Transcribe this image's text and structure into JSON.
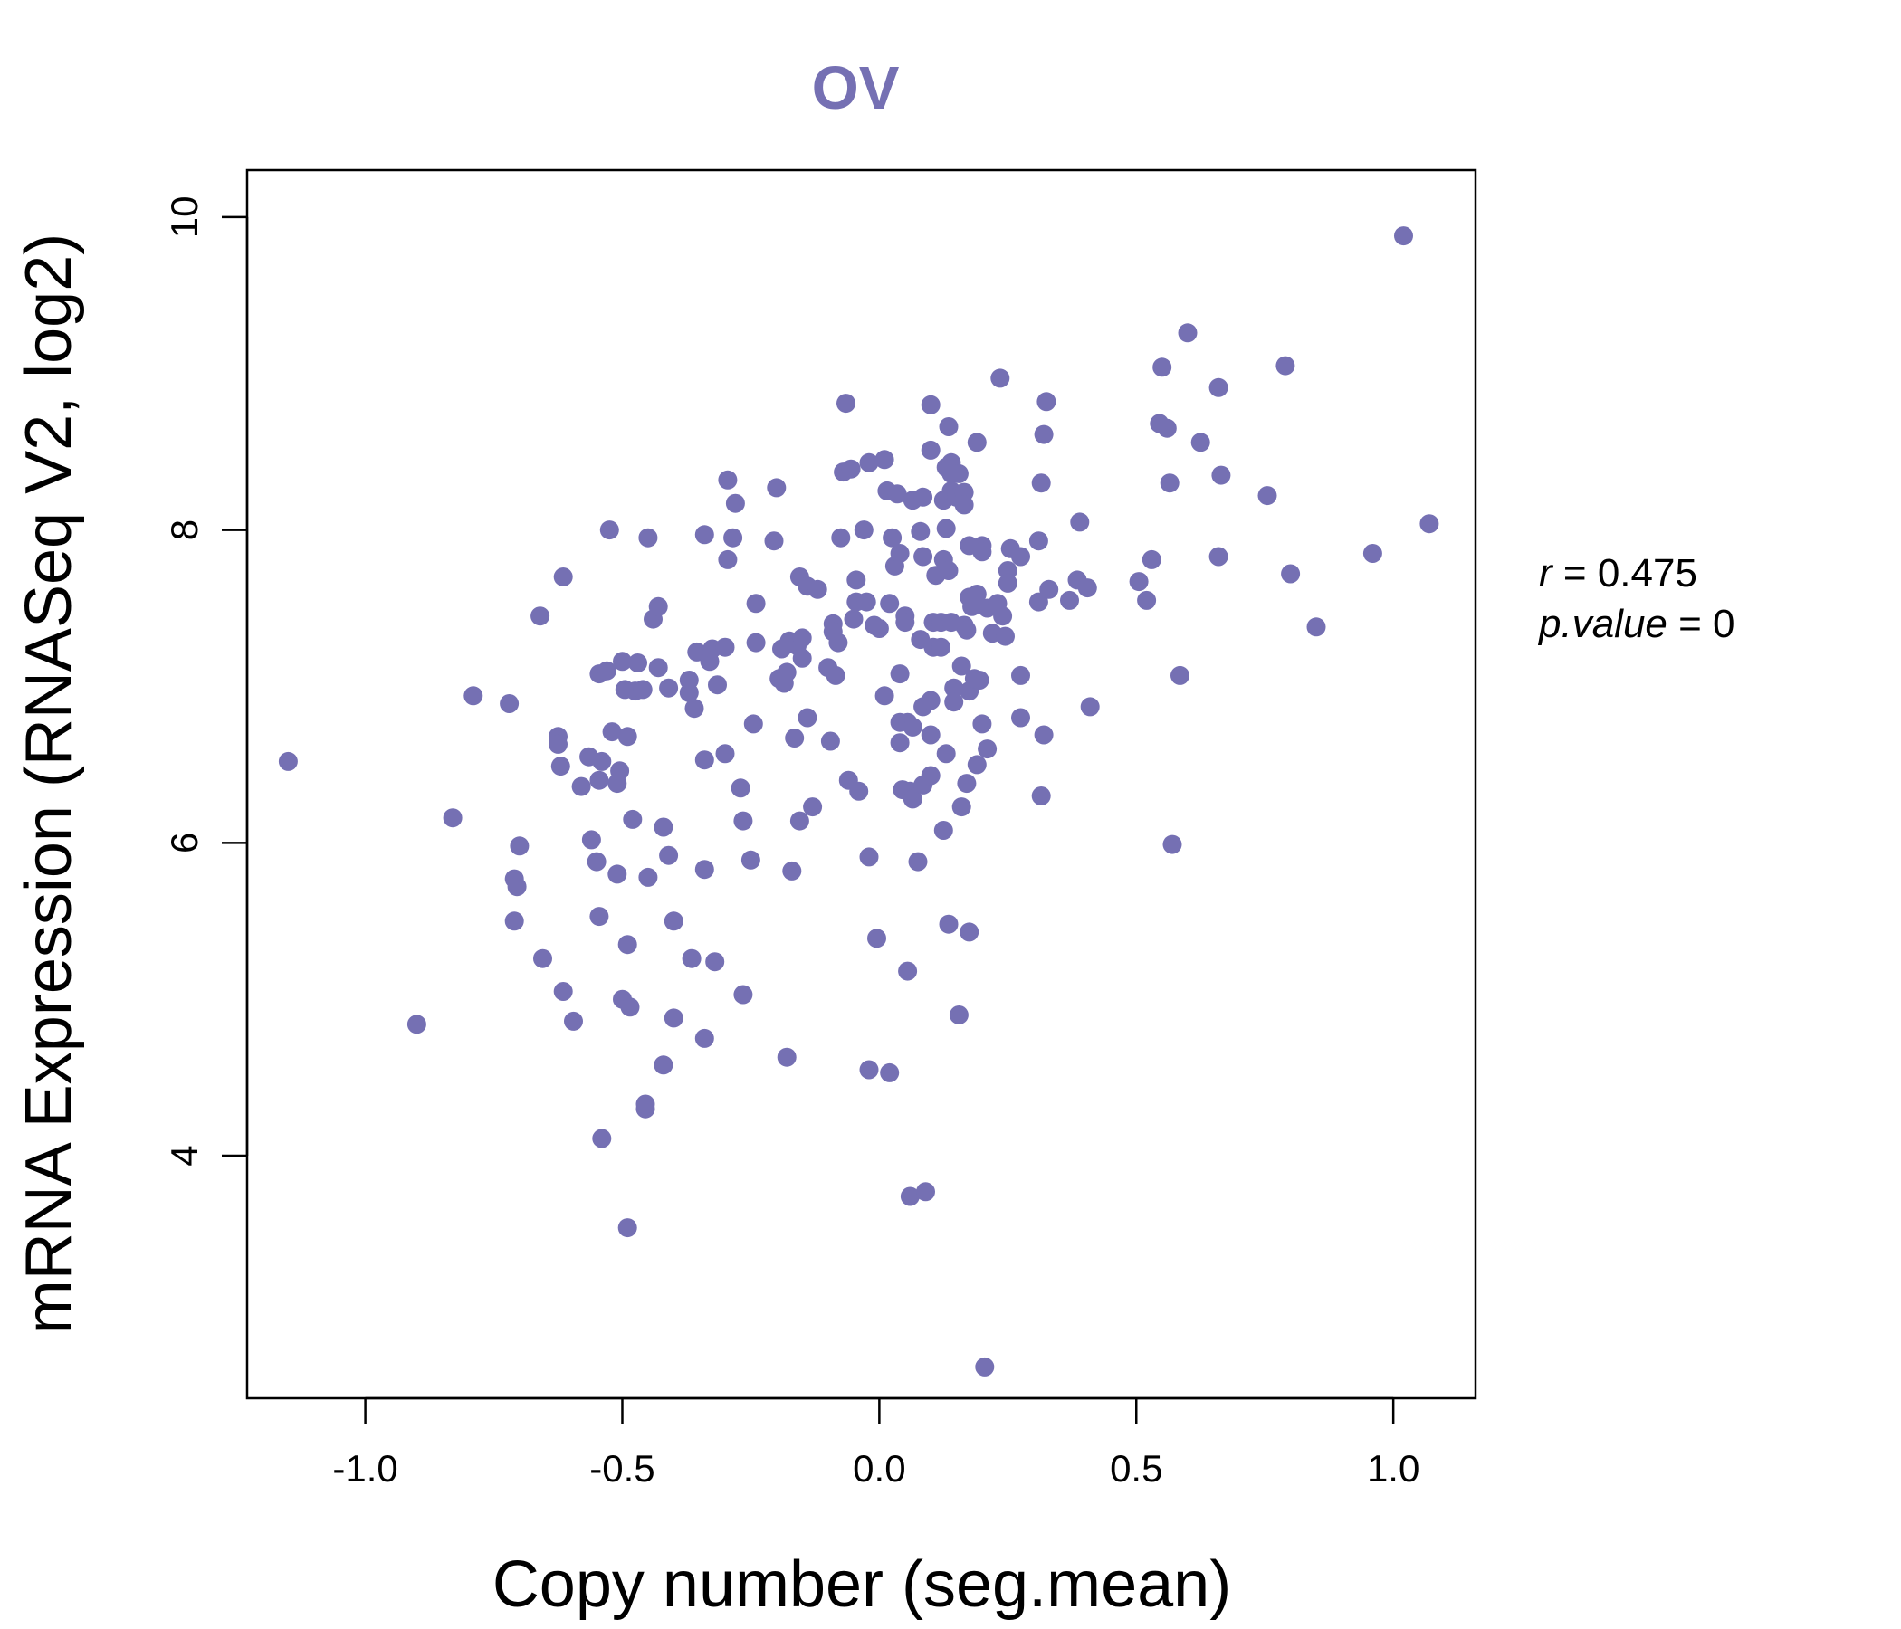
{
  "colors": {
    "accent": "#7570b3",
    "axis": "#000000",
    "background": "#ffffff"
  },
  "chart_data": {
    "type": "scatter",
    "title": "OV",
    "xlabel": "Copy number (seg.mean)",
    "ylabel": "mRNA Expression (RNASeq V2, log2)",
    "xlim": [
      -1.23,
      1.16
    ],
    "ylim": [
      2.45,
      10.3
    ],
    "x_ticks": [
      -1.0,
      -0.5,
      0.0,
      0.5,
      1.0
    ],
    "x_tick_labels": [
      "-1.0",
      "-0.5",
      "0.0",
      "0.5",
      "1.0"
    ],
    "y_ticks": [
      4,
      6,
      8,
      10
    ],
    "y_tick_labels": [
      "4",
      "6",
      "8",
      "10"
    ],
    "stats": {
      "r_label": "r",
      "r_value": "0.475",
      "p_label": "p.value",
      "p_value": "0"
    },
    "points": [
      [
        -1.15,
        6.52
      ],
      [
        -0.9,
        4.84
      ],
      [
        -0.83,
        6.16
      ],
      [
        -0.79,
        6.94
      ],
      [
        -0.72,
        6.89
      ],
      [
        -0.71,
        5.77
      ],
      [
        -0.705,
        5.72
      ],
      [
        -0.71,
        5.5
      ],
      [
        -0.7,
        5.98
      ],
      [
        -0.66,
        7.45
      ],
      [
        -0.655,
        5.26
      ],
      [
        -0.625,
        6.68
      ],
      [
        -0.625,
        6.63
      ],
      [
        -0.62,
        6.49
      ],
      [
        -0.615,
        7.7
      ],
      [
        -0.615,
        5.05
      ],
      [
        -0.595,
        4.86
      ],
      [
        -0.58,
        6.36
      ],
      [
        -0.565,
        6.55
      ],
      [
        -0.56,
        6.02
      ],
      [
        -0.55,
        5.88
      ],
      [
        -0.545,
        6.4
      ],
      [
        -0.545,
        7.08
      ],
      [
        -0.545,
        5.53
      ],
      [
        -0.54,
        6.52
      ],
      [
        -0.54,
        4.11
      ],
      [
        -0.53,
        7.1
      ],
      [
        -0.525,
        8.0
      ],
      [
        -0.52,
        6.71
      ],
      [
        -0.51,
        6.38
      ],
      [
        -0.51,
        5.8
      ],
      [
        -0.505,
        6.46
      ],
      [
        -0.5,
        7.16
      ],
      [
        -0.5,
        5.0
      ],
      [
        -0.495,
        6.98
      ],
      [
        -0.49,
        6.68
      ],
      [
        -0.49,
        5.35
      ],
      [
        -0.49,
        3.54
      ],
      [
        -0.485,
        4.95
      ],
      [
        -0.48,
        6.15
      ],
      [
        -0.475,
        6.97
      ],
      [
        -0.47,
        7.15
      ],
      [
        -0.46,
        6.98
      ],
      [
        -0.455,
        4.3
      ],
      [
        -0.455,
        4.33
      ],
      [
        -0.45,
        7.95
      ],
      [
        -0.45,
        5.78
      ],
      [
        -0.44,
        7.43
      ],
      [
        -0.43,
        7.51
      ],
      [
        -0.43,
        7.12
      ],
      [
        -0.42,
        6.1
      ],
      [
        -0.42,
        4.58
      ],
      [
        -0.41,
        5.92
      ],
      [
        -0.41,
        6.99
      ],
      [
        -0.4,
        5.5
      ],
      [
        -0.4,
        4.88
      ],
      [
        -0.37,
        6.96
      ],
      [
        -0.37,
        7.04
      ],
      [
        -0.365,
        5.26
      ],
      [
        -0.36,
        6.86
      ],
      [
        -0.355,
        7.22
      ],
      [
        -0.34,
        7.97
      ],
      [
        -0.34,
        6.53
      ],
      [
        -0.34,
        5.83
      ],
      [
        -0.34,
        4.75
      ],
      [
        -0.33,
        7.16
      ],
      [
        -0.325,
        7.24
      ],
      [
        -0.32,
        5.24
      ],
      [
        -0.315,
        7.01
      ],
      [
        -0.3,
        6.57
      ],
      [
        -0.3,
        7.25
      ],
      [
        -0.295,
        8.32
      ],
      [
        -0.295,
        7.81
      ],
      [
        -0.285,
        7.95
      ],
      [
        -0.28,
        8.17
      ],
      [
        -0.27,
        6.35
      ],
      [
        -0.265,
        6.14
      ],
      [
        -0.265,
        5.03
      ],
      [
        -0.25,
        5.89
      ],
      [
        -0.245,
        6.76
      ],
      [
        -0.24,
        7.53
      ],
      [
        -0.24,
        7.28
      ],
      [
        -0.205,
        7.93
      ],
      [
        -0.2,
        8.27
      ],
      [
        -0.195,
        7.05
      ],
      [
        -0.19,
        7.24
      ],
      [
        -0.185,
        7.02
      ],
      [
        -0.18,
        7.09
      ],
      [
        -0.18,
        4.63
      ],
      [
        -0.175,
        7.29
      ],
      [
        -0.17,
        5.82
      ],
      [
        -0.165,
        6.67
      ],
      [
        -0.16,
        7.26
      ],
      [
        -0.155,
        7.7
      ],
      [
        -0.155,
        6.14
      ],
      [
        -0.15,
        7.31
      ],
      [
        -0.15,
        7.18
      ],
      [
        -0.14,
        6.8
      ],
      [
        -0.14,
        7.64
      ],
      [
        -0.13,
        6.23
      ],
      [
        -0.12,
        7.62
      ],
      [
        -0.1,
        7.12
      ],
      [
        -0.095,
        6.65
      ],
      [
        -0.09,
        7.4
      ],
      [
        -0.09,
        7.35
      ],
      [
        -0.085,
        7.07
      ],
      [
        -0.08,
        7.28
      ],
      [
        -0.075,
        7.95
      ],
      [
        -0.07,
        8.37
      ],
      [
        -0.065,
        8.81
      ],
      [
        -0.06,
        6.4
      ],
      [
        -0.055,
        8.39
      ],
      [
        -0.05,
        7.43
      ],
      [
        -0.045,
        7.68
      ],
      [
        -0.045,
        7.54
      ],
      [
        -0.04,
        6.33
      ],
      [
        -0.03,
        8.0
      ],
      [
        -0.025,
        7.54
      ],
      [
        -0.02,
        8.43
      ],
      [
        -0.02,
        5.91
      ],
      [
        -0.02,
        4.55
      ],
      [
        -0.01,
        7.39
      ],
      [
        -0.005,
        5.39
      ],
      [
        0.0,
        7.37
      ],
      [
        0.01,
        6.94
      ],
      [
        0.01,
        8.45
      ],
      [
        0.015,
        8.25
      ],
      [
        0.02,
        7.53
      ],
      [
        0.02,
        4.53
      ],
      [
        0.025,
        7.95
      ],
      [
        0.03,
        7.77
      ],
      [
        0.035,
        8.23
      ],
      [
        0.04,
        7.85
      ],
      [
        0.04,
        7.08
      ],
      [
        0.04,
        6.77
      ],
      [
        0.04,
        6.64
      ],
      [
        0.045,
        6.34
      ],
      [
        0.05,
        7.45
      ],
      [
        0.05,
        7.41
      ],
      [
        0.055,
        6.77
      ],
      [
        0.055,
        5.18
      ],
      [
        0.06,
        6.33
      ],
      [
        0.06,
        3.74
      ],
      [
        0.065,
        8.19
      ],
      [
        0.065,
        6.28
      ],
      [
        0.065,
        6.74
      ],
      [
        0.075,
        5.88
      ],
      [
        0.08,
        7.99
      ],
      [
        0.08,
        7.3
      ],
      [
        0.085,
        8.21
      ],
      [
        0.085,
        7.83
      ],
      [
        0.085,
        6.87
      ],
      [
        0.085,
        6.37
      ],
      [
        0.09,
        3.77
      ],
      [
        0.1,
        8.8
      ],
      [
        0.1,
        8.51
      ],
      [
        0.1,
        6.91
      ],
      [
        0.1,
        6.69
      ],
      [
        0.1,
        6.43
      ],
      [
        0.105,
        7.25
      ],
      [
        0.105,
        7.41
      ],
      [
        0.11,
        7.71
      ],
      [
        0.12,
        7.41
      ],
      [
        0.12,
        7.25
      ],
      [
        0.125,
        8.19
      ],
      [
        0.125,
        7.81
      ],
      [
        0.125,
        6.08
      ],
      [
        0.13,
        8.4
      ],
      [
        0.13,
        8.01
      ],
      [
        0.13,
        6.57
      ],
      [
        0.135,
        8.66
      ],
      [
        0.135,
        7.74
      ],
      [
        0.135,
        5.48
      ],
      [
        0.14,
        8.43
      ],
      [
        0.14,
        8.36
      ],
      [
        0.14,
        8.25
      ],
      [
        0.14,
        7.41
      ],
      [
        0.145,
        6.99
      ],
      [
        0.145,
        6.9
      ],
      [
        0.15,
        8.21
      ],
      [
        0.155,
        8.36
      ],
      [
        0.155,
        4.9
      ],
      [
        0.16,
        7.13
      ],
      [
        0.16,
        6.23
      ],
      [
        0.165,
        8.24
      ],
      [
        0.165,
        8.16
      ],
      [
        0.165,
        7.39
      ],
      [
        0.17,
        6.38
      ],
      [
        0.17,
        7.36
      ],
      [
        0.175,
        7.9
      ],
      [
        0.175,
        7.57
      ],
      [
        0.175,
        6.97
      ],
      [
        0.175,
        5.43
      ],
      [
        0.18,
        7.51
      ],
      [
        0.185,
        7.05
      ],
      [
        0.19,
        8.56
      ],
      [
        0.19,
        7.59
      ],
      [
        0.19,
        6.5
      ],
      [
        0.195,
        7.04
      ],
      [
        0.2,
        7.9
      ],
      [
        0.2,
        7.86
      ],
      [
        0.2,
        6.76
      ],
      [
        0.205,
        2.65
      ],
      [
        0.21,
        6.6
      ],
      [
        0.21,
        7.5
      ],
      [
        0.22,
        7.34
      ],
      [
        0.23,
        7.53
      ],
      [
        0.235,
        8.97
      ],
      [
        0.24,
        7.45
      ],
      [
        0.245,
        7.32
      ],
      [
        0.25,
        7.74
      ],
      [
        0.25,
        7.66
      ],
      [
        0.255,
        7.88
      ],
      [
        0.275,
        7.83
      ],
      [
        0.275,
        7.07
      ],
      [
        0.275,
        6.8
      ],
      [
        0.31,
        7.54
      ],
      [
        0.31,
        7.93
      ],
      [
        0.315,
        8.3
      ],
      [
        0.315,
        6.3
      ],
      [
        0.32,
        6.69
      ],
      [
        0.32,
        8.61
      ],
      [
        0.325,
        8.82
      ],
      [
        0.33,
        7.62
      ],
      [
        0.37,
        7.55
      ],
      [
        0.385,
        7.68
      ],
      [
        0.39,
        8.05
      ],
      [
        0.405,
        7.63
      ],
      [
        0.41,
        6.87
      ],
      [
        0.505,
        7.67
      ],
      [
        0.52,
        7.55
      ],
      [
        0.53,
        7.81
      ],
      [
        0.545,
        8.68
      ],
      [
        0.55,
        9.04
      ],
      [
        0.56,
        8.65
      ],
      [
        0.565,
        8.3
      ],
      [
        0.57,
        5.99
      ],
      [
        0.585,
        7.07
      ],
      [
        0.6,
        9.26
      ],
      [
        0.625,
        8.56
      ],
      [
        0.66,
        8.91
      ],
      [
        0.66,
        7.83
      ],
      [
        0.665,
        8.35
      ],
      [
        0.755,
        8.22
      ],
      [
        0.79,
        9.05
      ],
      [
        0.8,
        7.72
      ],
      [
        0.85,
        7.38
      ],
      [
        0.96,
        7.85
      ],
      [
        1.02,
        9.88
      ],
      [
        1.07,
        8.04
      ]
    ]
  }
}
